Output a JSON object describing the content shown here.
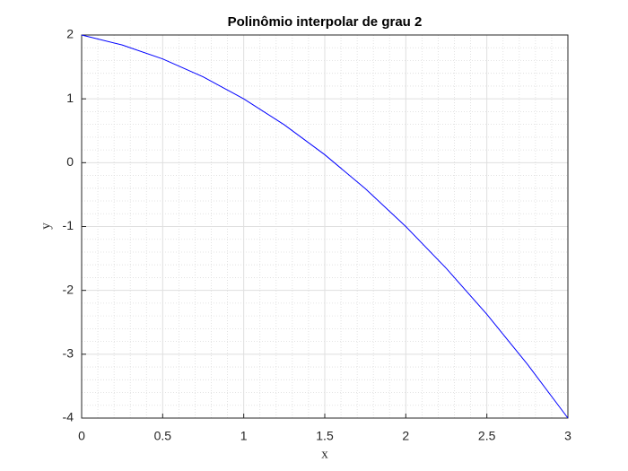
{
  "chart_data": {
    "type": "line",
    "title": "Polinômio interpolar de grau 2",
    "x_label": "x",
    "y_label": "y",
    "x": [
      0,
      0.25,
      0.5,
      0.75,
      1,
      1.25,
      1.5,
      1.75,
      2,
      2.25,
      2.5,
      2.75,
      3
    ],
    "series": [
      {
        "color": "#0000ff",
        "values": [
          2,
          1.84375,
          1.625,
          1.34375,
          1,
          0.59375,
          0.125,
          -0.40625,
          -1,
          -1.65625,
          -2.375,
          -3.15625,
          -4
        ]
      }
    ],
    "xlim": [
      0,
      3
    ],
    "ylim": [
      -4,
      2
    ],
    "xticks": [
      0,
      0.5,
      1,
      1.5,
      2,
      2.5,
      3
    ],
    "yticks": [
      -4,
      -3,
      -2,
      -1,
      0,
      1,
      2
    ],
    "grid": true,
    "minor_grid": true
  }
}
